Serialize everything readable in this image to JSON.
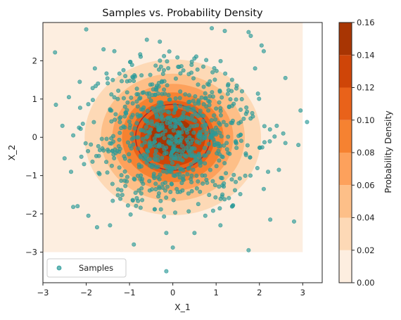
{
  "chart_data": {
    "type": "scatter",
    "title": "Samples vs. Probability Density",
    "xlabel": "X_1",
    "ylabel": "X_2",
    "xlim": [
      -3,
      3.45
    ],
    "ylim": [
      -3.8,
      3.0
    ],
    "xticks": [
      -3,
      -2,
      -1,
      0,
      1,
      2,
      3
    ],
    "yticks": [
      -3,
      -2,
      -1,
      0,
      1,
      2
    ],
    "xtick_labels": [
      "−3",
      "−2",
      "−1",
      "0",
      "1",
      "2",
      "3"
    ],
    "ytick_labels": [
      "−3",
      "−2",
      "−1",
      "0",
      "1",
      "2"
    ],
    "density": {
      "description": "filled contour of a bivariate normal density, mean (0,0), unit variance",
      "grid_extent": [
        -3,
        3,
        -3,
        3
      ],
      "levels": [
        0.0,
        0.02,
        0.04,
        0.06,
        0.08,
        0.1,
        0.12,
        0.14,
        0.16
      ],
      "colors": [
        "#fdeee0",
        "#fdd9b6",
        "#fdbf88",
        "#fda15c",
        "#f68231",
        "#e9621a",
        "#cf4508",
        "#a83503",
        "#7f2a04"
      ],
      "line_contours_color": "#b22222"
    },
    "series": [
      {
        "name": "Samples",
        "color": "#2a9a98",
        "marker": "circle",
        "n_points": 800,
        "points": [
          [
            -2.72,
            2.22
          ],
          [
            -2.7,
            0.85
          ],
          [
            -2.0,
            2.82
          ],
          [
            -1.6,
            2.3
          ],
          [
            -1.35,
            2.25
          ],
          [
            -0.3,
            2.5
          ],
          [
            1.2,
            2.78
          ],
          [
            1.8,
            2.65
          ],
          [
            1.75,
            2.75
          ],
          [
            2.1,
            2.25
          ],
          [
            2.05,
            2.4
          ],
          [
            3.1,
            0.4
          ],
          [
            2.6,
            1.55
          ],
          [
            2.95,
            0.7
          ],
          [
            2.55,
            0.1
          ],
          [
            2.6,
            -0.15
          ],
          [
            2.25,
            -2.15
          ],
          [
            2.8,
            -2.2
          ],
          [
            2.1,
            -1.35
          ],
          [
            1.75,
            -2.95
          ],
          [
            -0.15,
            -3.5
          ],
          [
            0.0,
            -2.88
          ],
          [
            -0.9,
            -2.8
          ],
          [
            -2.3,
            -1.82
          ],
          [
            -1.75,
            -2.35
          ],
          [
            -1.95,
            -2.05
          ],
          [
            -2.2,
            -1.8
          ],
          [
            -2.35,
            -0.9
          ],
          [
            -2.5,
            -0.55
          ],
          [
            -2.55,
            0.3
          ],
          [
            -2.4,
            1.05
          ],
          [
            -2.3,
            0.05
          ],
          [
            2.35,
            0.02
          ],
          [
            2.4,
            0.3
          ],
          [
            2.2,
            -0.9
          ],
          [
            2.45,
            -0.85
          ],
          [
            1.9,
            1.8
          ],
          [
            0.9,
            2.85
          ],
          [
            -0.6,
            2.55
          ],
          [
            -1.8,
            1.8
          ],
          [
            -2.15,
            1.45
          ],
          [
            -2.05,
            -0.7
          ],
          [
            0.5,
            -2.5
          ],
          [
            -0.15,
            -2.5
          ],
          [
            1.1,
            -2.3
          ],
          [
            0.75,
            -2.05
          ],
          [
            -1.45,
            -2.3
          ],
          [
            2.9,
            -0.2
          ]
        ]
      }
    ],
    "legend": {
      "entries": [
        "Samples"
      ],
      "position": "lower-left"
    },
    "colorbar": {
      "label": "Probability Density",
      "ticks": [
        0.0,
        0.02,
        0.04,
        0.06,
        0.08,
        0.1,
        0.12,
        0.14,
        0.16
      ],
      "tick_labels": [
        "0.00",
        "0.02",
        "0.04",
        "0.06",
        "0.08",
        "0.10",
        "0.12",
        "0.14",
        "0.16"
      ]
    }
  }
}
